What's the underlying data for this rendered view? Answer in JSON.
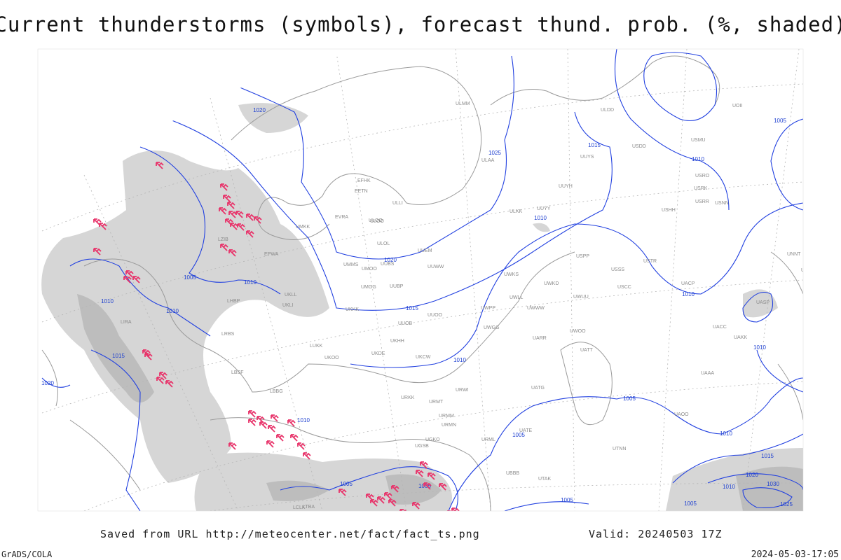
{
  "header": {
    "title": "Current thunderstorms (symbols), forecast thund. prob. (%, shaded)"
  },
  "footer": {
    "source": "Saved from URL http://meteocenter.net/fact/fact_ts.png",
    "valid": "Valid: 20240503 17Z",
    "software": "GrADS/COLA",
    "timestamp": "2024-05-03-17:05"
  },
  "map": {
    "isobar_labels": [
      "1020",
      "1025",
      "1015",
      "1010",
      "1020",
      "1015",
      "1010",
      "1005",
      "1010",
      "1010",
      "1015",
      "1020",
      "1010",
      "1005",
      "1010",
      "1010",
      "1005",
      "1010",
      "1010",
      "1005",
      "1005",
      "1005",
      "1005",
      "1005",
      "1010",
      "1015",
      "1020",
      "1030",
      "1025",
      "1010"
    ],
    "station_labels": [
      "ULMM",
      "ULAA",
      "EFHK",
      "EETN",
      "ULLI",
      "EVRA",
      "ULOO",
      "ULOL",
      "UUEM",
      "UMMS",
      "UMOO",
      "UUBS",
      "UUWW",
      "UMGG",
      "UUBP",
      "UUOO",
      "UKKK",
      "UUOB",
      "UKHH",
      "UKDE",
      "UKOO",
      "LUKK",
      "UKCW",
      "URWI",
      "URKK",
      "URMT",
      "URMM",
      "URMN",
      "URML",
      "UGKO",
      "UGSB",
      "UBBB",
      "UUYY",
      "UUYS",
      "ULDD",
      "USDD",
      "USMU",
      "USRO",
      "USRK",
      "USRR",
      "USNN",
      "USHH",
      "USPP",
      "USSS",
      "USCC",
      "USTR",
      "UWKD",
      "UWWW",
      "UWUU",
      "UWOO",
      "UATT",
      "UACC",
      "UAKK",
      "UAAA",
      "UASP",
      "UATG",
      "UATE",
      "UAOO",
      "UACP",
      "ULKK",
      "EPWA",
      "LHBP",
      "LRBS",
      "LBSF",
      "LIRA",
      "LBBG",
      "LTBA",
      "UMKK",
      "UKLL",
      "UKLI",
      "LZIB",
      "UWLL",
      "UWPP",
      "UWGG",
      "UWKS",
      "UARR",
      "UTAK",
      "UTNN",
      "LCLK",
      "UUYH",
      "ULOO",
      "UOII",
      "UNBB",
      "UNNT"
    ]
  }
}
